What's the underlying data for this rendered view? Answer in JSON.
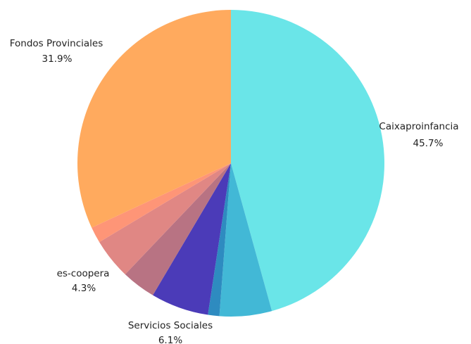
{
  "chart_data": {
    "type": "pie",
    "title": "",
    "start": "12 o'clock",
    "direction": "clockwise",
    "slices": [
      {
        "label": "Caixaproinfancia",
        "value": 45.7,
        "value_label": "45.7%",
        "color": "#6AE5E8"
      },
      {
        "label": "",
        "value": 5.5,
        "value_label": "",
        "color": "#42B8D6"
      },
      {
        "label": "",
        "value": 1.2,
        "value_label": "",
        "color": "#2E8BC0"
      },
      {
        "label": "Servicios Sociales",
        "value": 6.1,
        "value_label": "6.1%",
        "color": "#4B3BB8"
      },
      {
        "label": "",
        "value": 3.6,
        "value_label": "",
        "color": "#B87383"
      },
      {
        "label": "es-coopera",
        "value": 4.3,
        "value_label": "4.3%",
        "color": "#E08784"
      },
      {
        "label": "",
        "value": 1.7,
        "value_label": "",
        "color": "#FE9577"
      },
      {
        "label": "Fondos Provinciales",
        "value": 31.9,
        "value_label": "31.9%",
        "color": "#FFAA5E"
      }
    ]
  }
}
